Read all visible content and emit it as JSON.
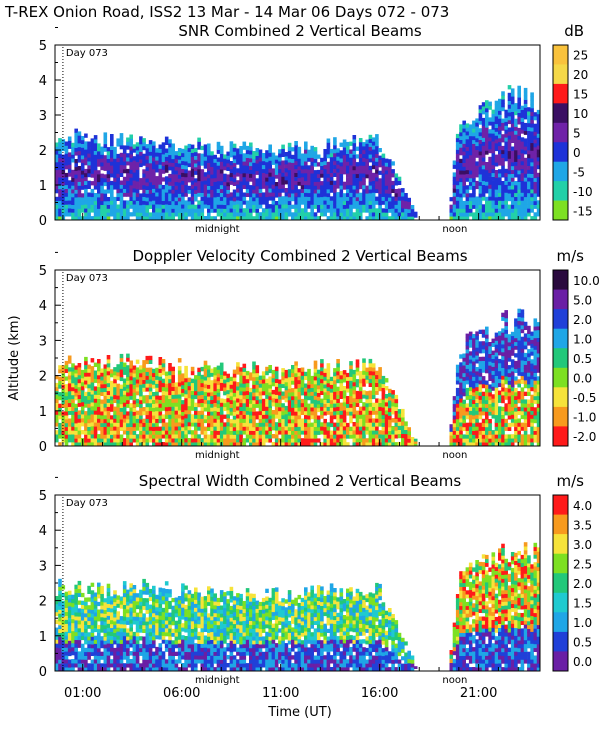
{
  "page_title": "T-REX Onion Road, ISS2  13 Mar - 14 Mar 06 Days 072 - 073",
  "chart_data": [
    {
      "type": "heatmap",
      "title": "SNR Combined 2 Vertical Beams",
      "units": "dB",
      "ylabel": "",
      "ylim": [
        0,
        5
      ],
      "yticks": [
        "0",
        "1",
        "2",
        "3",
        "4",
        "5"
      ],
      "day_marker": "Day 073",
      "top_labels": [
        "midnight",
        "noon"
      ],
      "colorbar": [
        {
          "label": "25",
          "color": "#f9c23c"
        },
        {
          "label": "20",
          "color": "#f5d848"
        },
        {
          "label": "15",
          "color": "#ff1a1a"
        },
        {
          "label": "10",
          "color": "#3a0f63"
        },
        {
          "label": "5",
          "color": "#6f22a8"
        },
        {
          "label": "0",
          "color": "#1e32d8"
        },
        {
          "label": "-5",
          "color": "#1fa6e6"
        },
        {
          "label": "-10",
          "color": "#22d0a8"
        },
        {
          "label": "-15",
          "color": "#7de022"
        }
      ],
      "series": [
        {
          "name": "echo_top_km",
          "x_hours": [
            0,
            2,
            4,
            6,
            8,
            10,
            12,
            14,
            16,
            18,
            19.5,
            20,
            21,
            22,
            23,
            23.8
          ],
          "values": [
            2.6,
            2.4,
            2.4,
            2.3,
            2.2,
            2.2,
            2.2,
            2.3,
            2.4,
            0,
            0,
            3.0,
            3.2,
            3.6,
            3.8,
            3.6
          ]
        }
      ]
    },
    {
      "type": "heatmap",
      "title": "Doppler Velocity Combined 2 Vertical Beams",
      "units": "m/s",
      "ylabel": "Altitude (km)",
      "ylim": [
        0,
        5
      ],
      "yticks": [
        "0",
        "1",
        "2",
        "3",
        "4",
        "5"
      ],
      "day_marker": "Day 073",
      "top_labels": [
        "midnight",
        "noon"
      ],
      "colorbar": [
        {
          "label": "10.0",
          "color": "#2a0a3e"
        },
        {
          "label": "5.0",
          "color": "#6a1fa5"
        },
        {
          "label": "2.0",
          "color": "#2040d8"
        },
        {
          "label": "1.0",
          "color": "#1fa6e6"
        },
        {
          "label": "0.5",
          "color": "#22c87a"
        },
        {
          "label": "0.0",
          "color": "#7de022"
        },
        {
          "label": "-0.5",
          "color": "#f6e33a"
        },
        {
          "label": "-1.0",
          "color": "#f79a1e"
        },
        {
          "label": "-2.0",
          "color": "#ff1a1a"
        }
      ],
      "series": [
        {
          "name": "echo_top_km",
          "x_hours": [
            0,
            2,
            4,
            6,
            8,
            10,
            12,
            14,
            16,
            18,
            19.5,
            20,
            21,
            22,
            23,
            23.8
          ],
          "values": [
            2.5,
            2.5,
            2.5,
            2.4,
            2.3,
            2.3,
            2.3,
            2.4,
            2.4,
            0,
            0,
            3.0,
            3.2,
            3.6,
            3.8,
            3.5
          ]
        }
      ]
    },
    {
      "type": "heatmap",
      "title": "Spectral Width Combined 2 Vertical Beams",
      "units": "m/s",
      "ylabel": "",
      "xlabel": "Time (UT)",
      "ylim": [
        0,
        5
      ],
      "yticks": [
        "0",
        "1",
        "2",
        "3",
        "4",
        "5"
      ],
      "xticks": [
        "01:00",
        "06:00",
        "11:00",
        "16:00",
        "21:00"
      ],
      "day_marker": "Day 073",
      "top_labels": [
        "midnight",
        "noon"
      ],
      "colorbar": [
        {
          "label": "4.0",
          "color": "#ff1a1a"
        },
        {
          "label": "3.5",
          "color": "#f79a1e"
        },
        {
          "label": "3.0",
          "color": "#f6e33a"
        },
        {
          "label": "2.5",
          "color": "#7de022"
        },
        {
          "label": "2.0",
          "color": "#22c87a"
        },
        {
          "label": "1.5",
          "color": "#1fcad0"
        },
        {
          "label": "1.0",
          "color": "#1fa6e6"
        },
        {
          "label": "0.5",
          "color": "#2040d8"
        },
        {
          "label": "0.0",
          "color": "#6a1fa5"
        }
      ],
      "series": [
        {
          "name": "echo_top_km",
          "x_hours": [
            0,
            2,
            4,
            6,
            8,
            10,
            12,
            14,
            16,
            18,
            19.5,
            20,
            21,
            22,
            23,
            23.8
          ],
          "values": [
            2.5,
            2.4,
            2.5,
            2.4,
            2.3,
            2.3,
            2.3,
            2.4,
            2.4,
            0,
            0,
            2.9,
            3.1,
            3.5,
            3.7,
            3.5
          ]
        }
      ]
    }
  ]
}
